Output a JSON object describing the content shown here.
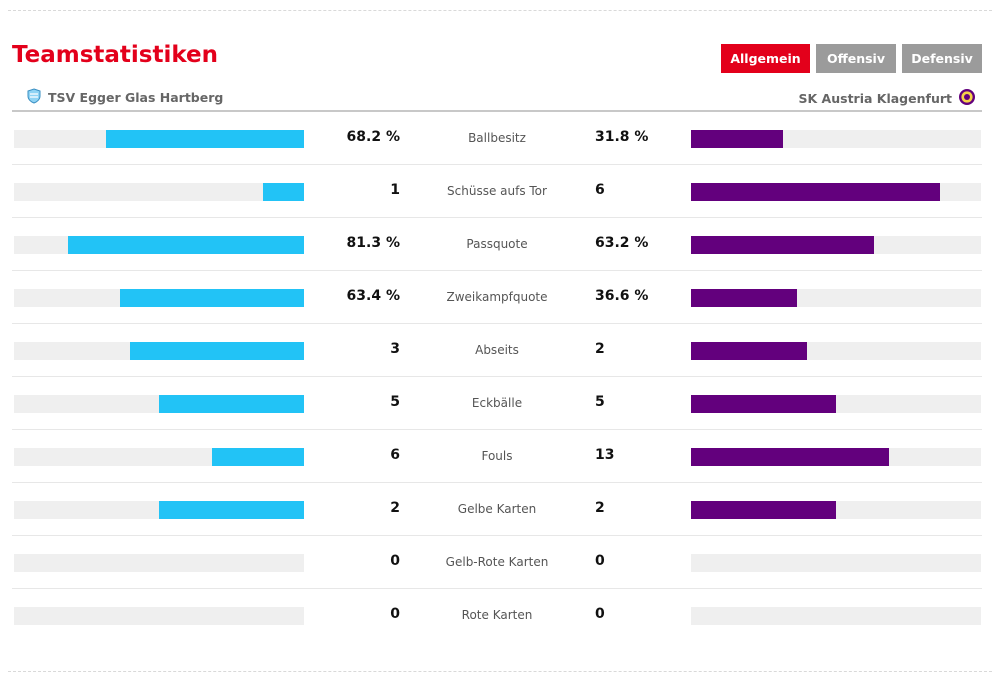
{
  "header": {
    "title": "Teamstatistiken",
    "tabs": [
      {
        "label": "Allgemein",
        "active": true
      },
      {
        "label": "Offensiv",
        "active": false
      },
      {
        "label": "Defensiv",
        "active": false
      }
    ]
  },
  "teams": {
    "home": {
      "name": "TSV Egger Glas Hartberg",
      "color": "#22c3f6"
    },
    "away": {
      "name": "SK Austria Klagenfurt",
      "color": "#63007d"
    }
  },
  "colors": {
    "accent": "#e3001b",
    "tab_inactive": "#9b9b9b",
    "track": "#efefef"
  },
  "stats": [
    {
      "label": "Ballbesitz",
      "home": "68.2 %",
      "away": "31.8 %",
      "home_fill": 0.682,
      "away_fill": 0.318
    },
    {
      "label": "Schüsse aufs Tor",
      "home": "1",
      "away": "6",
      "home_fill": 0.143,
      "away_fill": 0.857
    },
    {
      "label": "Passquote",
      "home": "81.3 %",
      "away": "63.2 %",
      "home_fill": 0.813,
      "away_fill": 0.632
    },
    {
      "label": "Zweikampfquote",
      "home": "63.4 %",
      "away": "36.6 %",
      "home_fill": 0.634,
      "away_fill": 0.366
    },
    {
      "label": "Abseits",
      "home": "3",
      "away": "2",
      "home_fill": 0.6,
      "away_fill": 0.4
    },
    {
      "label": "Eckbälle",
      "home": "5",
      "away": "5",
      "home_fill": 0.5,
      "away_fill": 0.5
    },
    {
      "label": "Fouls",
      "home": "6",
      "away": "13",
      "home_fill": 0.316,
      "away_fill": 0.684
    },
    {
      "label": "Gelbe Karten",
      "home": "2",
      "away": "2",
      "home_fill": 0.5,
      "away_fill": 0.5
    },
    {
      "label": "Gelb-Rote Karten",
      "home": "0",
      "away": "0",
      "home_fill": 0,
      "away_fill": 0
    },
    {
      "label": "Rote Karten",
      "home": "0",
      "away": "0",
      "home_fill": 0,
      "away_fill": 0
    }
  ]
}
